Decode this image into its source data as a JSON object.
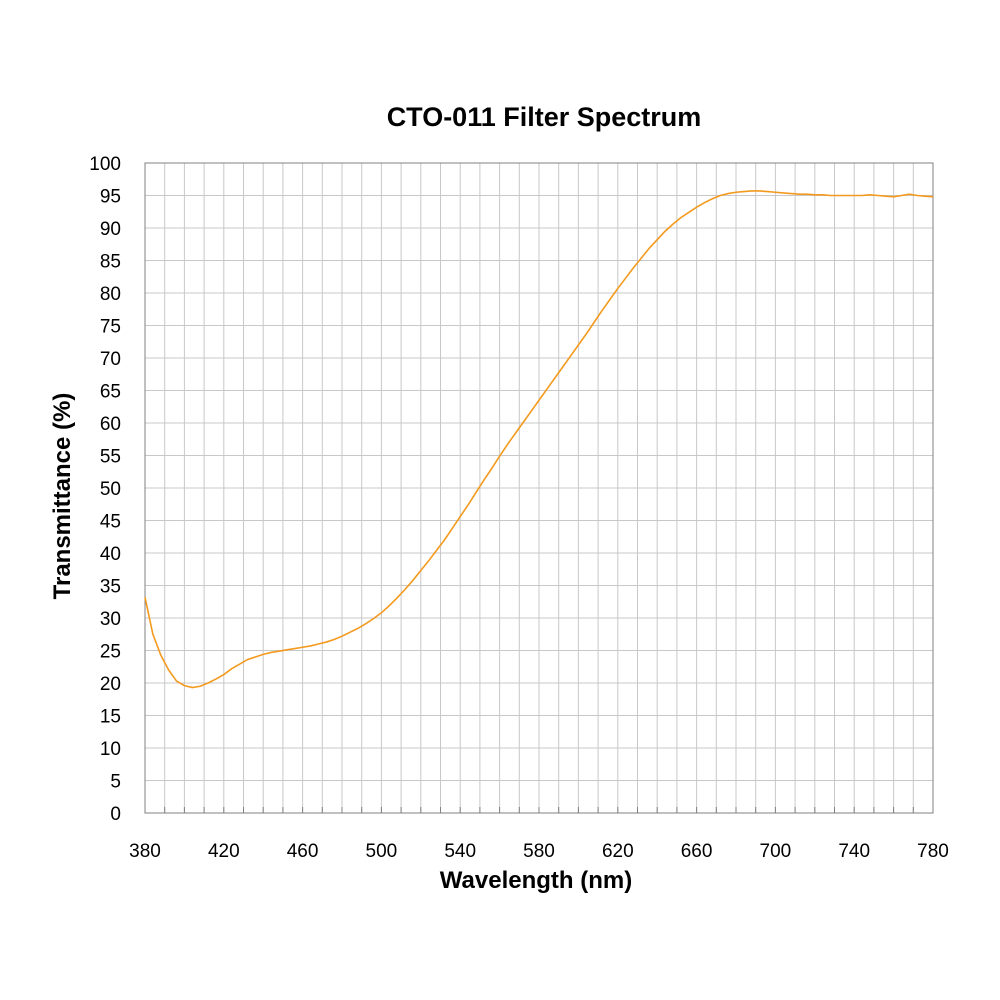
{
  "chart_data": {
    "type": "line",
    "title": "CTO-011 Filter Spectrum",
    "xlabel": "Wavelength (nm)",
    "ylabel": "Transmittance (%)",
    "xlim": [
      380,
      780
    ],
    "ylim": [
      0,
      100
    ],
    "x_ticks": [
      380,
      420,
      460,
      500,
      540,
      580,
      620,
      660,
      700,
      740,
      780
    ],
    "y_ticks": [
      0,
      5,
      10,
      15,
      20,
      25,
      30,
      35,
      40,
      45,
      50,
      55,
      60,
      65,
      70,
      75,
      80,
      85,
      90,
      95,
      100
    ],
    "grid": true,
    "legend": "none",
    "line_color": "#f39a1e",
    "series": [
      {
        "x": [
          380,
          384,
          388,
          392,
          396,
          400,
          404,
          408,
          412,
          416,
          420,
          424,
          428,
          432,
          436,
          440,
          444,
          448,
          452,
          456,
          460,
          464,
          468,
          472,
          476,
          480,
          484,
          488,
          492,
          496,
          500,
          504,
          508,
          512,
          516,
          520,
          524,
          528,
          532,
          536,
          540,
          544,
          548,
          552,
          556,
          560,
          564,
          568,
          572,
          576,
          580,
          584,
          588,
          592,
          596,
          600,
          604,
          608,
          612,
          616,
          620,
          624,
          628,
          632,
          636,
          640,
          644,
          648,
          652,
          656,
          660,
          664,
          668,
          672,
          676,
          680,
          684,
          688,
          692,
          696,
          700,
          704,
          708,
          712,
          716,
          720,
          724,
          728,
          732,
          736,
          740,
          744,
          748,
          752,
          756,
          760,
          764,
          768,
          772,
          776,
          780
        ],
        "y": [
          33.2,
          27.5,
          24.3,
          22.0,
          20.3,
          19.6,
          19.3,
          19.5,
          20.0,
          20.6,
          21.3,
          22.2,
          22.9,
          23.6,
          24.0,
          24.4,
          24.7,
          24.9,
          25.1,
          25.3,
          25.5,
          25.7,
          26.0,
          26.3,
          26.7,
          27.2,
          27.8,
          28.4,
          29.1,
          29.9,
          30.8,
          31.9,
          33.1,
          34.4,
          35.8,
          37.3,
          38.8,
          40.4,
          42.0,
          43.8,
          45.6,
          47.4,
          49.3,
          51.2,
          53.0,
          54.9,
          56.7,
          58.4,
          60.1,
          61.8,
          63.5,
          65.2,
          66.9,
          68.6,
          70.3,
          72.0,
          73.7,
          75.5,
          77.3,
          79.0,
          80.7,
          82.3,
          83.9,
          85.4,
          86.9,
          88.2,
          89.5,
          90.6,
          91.6,
          92.4,
          93.2,
          93.9,
          94.5,
          95.0,
          95.3,
          95.5,
          95.6,
          95.7,
          95.7,
          95.6,
          95.5,
          95.4,
          95.3,
          95.2,
          95.2,
          95.1,
          95.1,
          95.0,
          95.0,
          95.0,
          95.0,
          95.0,
          95.1,
          95.0,
          94.9,
          94.8,
          95.0,
          95.2,
          95.0,
          94.9,
          94.8
        ]
      }
    ]
  }
}
